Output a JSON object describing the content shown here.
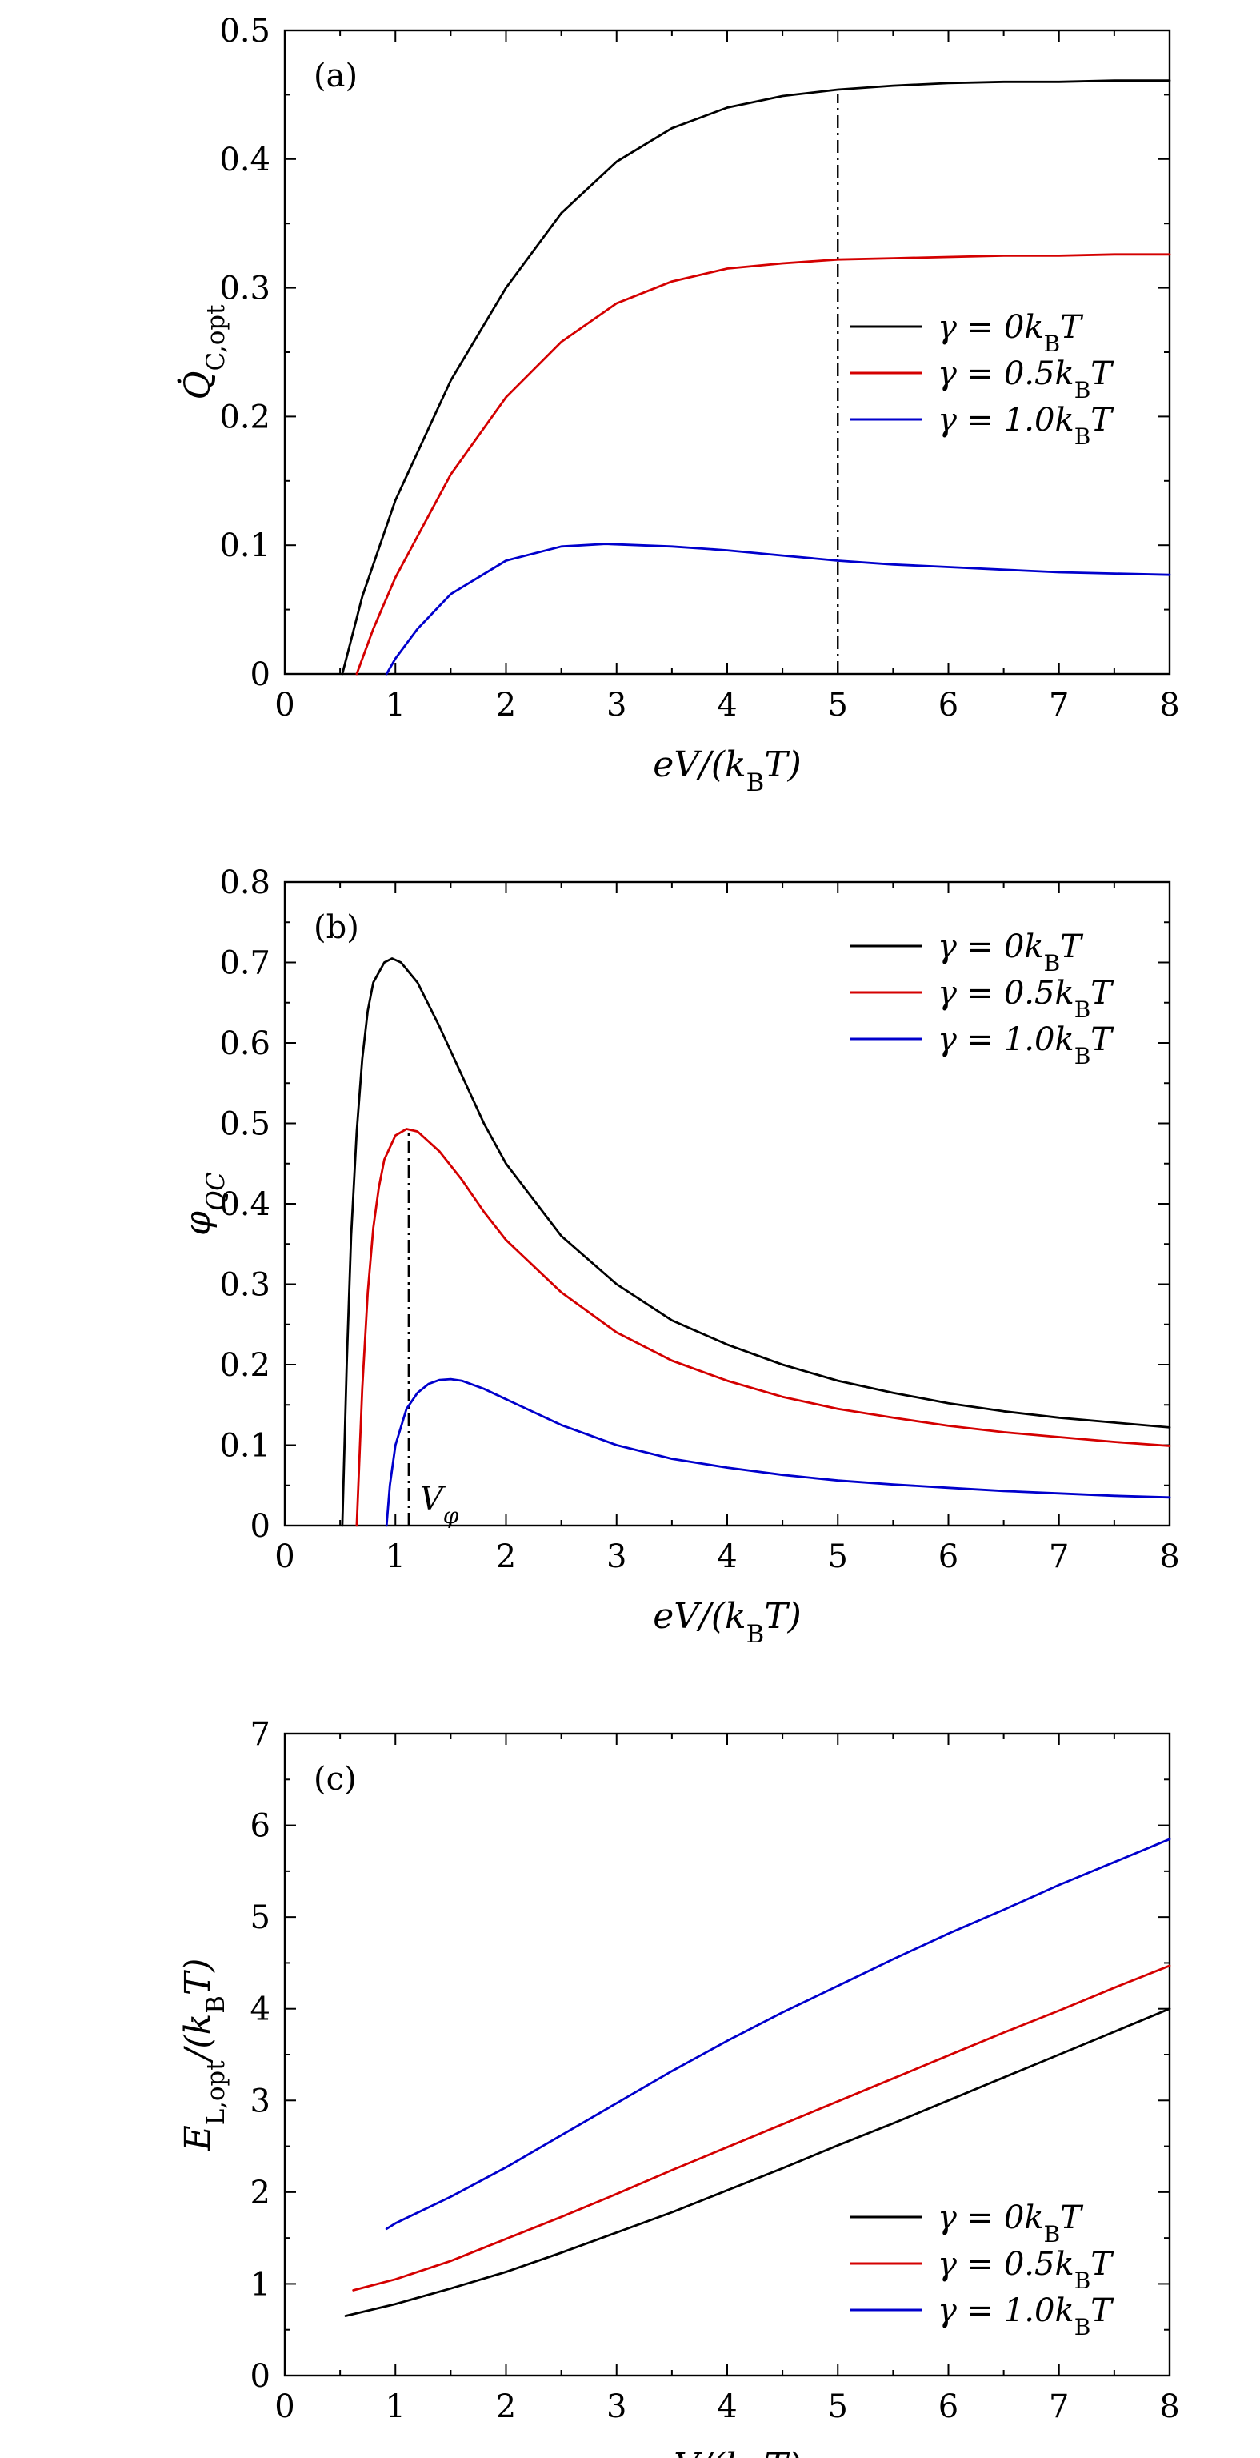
{
  "chart_data": [
    {
      "panel": "(a)",
      "type": "line",
      "xlabel": "eV/(kBT)",
      "ylabel": "Q̇C,opt",
      "xlim": [
        0,
        8
      ],
      "ylim": [
        0,
        0.5
      ],
      "xticks": [
        "0",
        "1",
        "2",
        "3",
        "4",
        "5",
        "6",
        "7",
        "8"
      ],
      "yticks": [
        "0",
        "0.1",
        "0.2",
        "0.3",
        "0.4",
        "0.5"
      ],
      "legend_position": "center-right",
      "series": [
        {
          "name": "γ = 0kBT",
          "color": "#000000",
          "x": [
            0.52,
            0.7,
            1.0,
            1.5,
            2.0,
            2.5,
            3.0,
            3.5,
            4.0,
            4.5,
            5.0,
            5.5,
            6.0,
            6.5,
            7.0,
            7.5,
            8.0
          ],
          "y": [
            0.0,
            0.06,
            0.135,
            0.228,
            0.3,
            0.358,
            0.398,
            0.424,
            0.44,
            0.449,
            0.454,
            0.457,
            0.459,
            0.46,
            0.46,
            0.461,
            0.461
          ]
        },
        {
          "name": "γ = 0.5kBT",
          "color": "#d40000",
          "x": [
            0.65,
            0.8,
            1.0,
            1.5,
            2.0,
            2.5,
            3.0,
            3.5,
            4.0,
            4.5,
            5.0,
            5.5,
            6.0,
            6.5,
            7.0,
            7.5,
            8.0
          ],
          "y": [
            0.0,
            0.035,
            0.075,
            0.155,
            0.215,
            0.258,
            0.288,
            0.305,
            0.315,
            0.319,
            0.322,
            0.323,
            0.324,
            0.325,
            0.325,
            0.326,
            0.326
          ]
        },
        {
          "name": "γ = 1.0kBT",
          "color": "#0000cc",
          "x": [
            0.92,
            1.0,
            1.2,
            1.5,
            2.0,
            2.5,
            2.9,
            3.5,
            4.0,
            4.5,
            5.0,
            5.5,
            6.0,
            6.5,
            7.0,
            7.5,
            8.0
          ],
          "y": [
            0.0,
            0.012,
            0.035,
            0.062,
            0.088,
            0.099,
            0.101,
            0.099,
            0.096,
            0.092,
            0.088,
            0.085,
            0.083,
            0.081,
            0.079,
            0.078,
            0.077
          ]
        }
      ],
      "vlines": [
        {
          "x": 5
        }
      ]
    },
    {
      "panel": "(b)",
      "type": "line",
      "xlabel": "eV/(kBT)",
      "ylabel": "φQC",
      "xlim": [
        0,
        8
      ],
      "ylim": [
        0,
        0.8
      ],
      "xticks": [
        "0",
        "1",
        "2",
        "3",
        "4",
        "5",
        "6",
        "7",
        "8"
      ],
      "yticks": [
        "0",
        "0.1",
        "0.2",
        "0.3",
        "0.4",
        "0.5",
        "0.6",
        "0.7",
        "0.8"
      ],
      "legend_position": "top-right",
      "annotation": "Vφ",
      "series": [
        {
          "name": "γ = 0kBT",
          "color": "#000000",
          "x": [
            0.52,
            0.56,
            0.6,
            0.65,
            0.7,
            0.75,
            0.8,
            0.9,
            0.97,
            1.05,
            1.2,
            1.4,
            1.6,
            1.8,
            2.0,
            2.5,
            3.0,
            3.5,
            4.0,
            4.5,
            5.0,
            5.5,
            6.0,
            6.5,
            7.0,
            7.5,
            8.0
          ],
          "y": [
            0.0,
            0.2,
            0.36,
            0.49,
            0.58,
            0.64,
            0.675,
            0.7,
            0.705,
            0.7,
            0.675,
            0.62,
            0.56,
            0.5,
            0.45,
            0.36,
            0.3,
            0.255,
            0.225,
            0.2,
            0.18,
            0.165,
            0.152,
            0.142,
            0.134,
            0.128,
            0.122
          ]
        },
        {
          "name": "γ = 0.5kBT",
          "color": "#d40000",
          "x": [
            0.65,
            0.7,
            0.75,
            0.8,
            0.85,
            0.9,
            1.0,
            1.1,
            1.2,
            1.4,
            1.6,
            1.8,
            2.0,
            2.5,
            3.0,
            3.5,
            4.0,
            4.5,
            5.0,
            5.5,
            6.0,
            6.5,
            7.0,
            7.5,
            8.0
          ],
          "y": [
            0.0,
            0.17,
            0.29,
            0.37,
            0.42,
            0.455,
            0.485,
            0.493,
            0.49,
            0.465,
            0.43,
            0.39,
            0.355,
            0.29,
            0.24,
            0.205,
            0.18,
            0.16,
            0.145,
            0.134,
            0.124,
            0.116,
            0.11,
            0.104,
            0.099
          ]
        },
        {
          "name": "γ = 1.0kBT",
          "color": "#0000cc",
          "x": [
            0.92,
            0.95,
            1.0,
            1.1,
            1.2,
            1.3,
            1.4,
            1.5,
            1.6,
            1.8,
            2.0,
            2.5,
            3.0,
            3.5,
            4.0,
            4.5,
            5.0,
            5.5,
            6.0,
            6.5,
            7.0,
            7.5,
            8.0
          ],
          "y": [
            0.0,
            0.05,
            0.1,
            0.145,
            0.165,
            0.176,
            0.181,
            0.182,
            0.18,
            0.17,
            0.157,
            0.125,
            0.1,
            0.083,
            0.072,
            0.063,
            0.056,
            0.051,
            0.047,
            0.043,
            0.04,
            0.037,
            0.035
          ]
        }
      ],
      "vlines": [
        {
          "x": 1.12,
          "y_top": 0.493
        }
      ]
    },
    {
      "panel": "(c)",
      "type": "line",
      "xlabel": "eV/(kBT)",
      "ylabel": "EL,opt/(kBT)",
      "xlim": [
        0,
        8
      ],
      "ylim": [
        0,
        7
      ],
      "xticks": [
        "0",
        "1",
        "2",
        "3",
        "4",
        "5",
        "6",
        "7",
        "8"
      ],
      "yticks": [
        "0",
        "1",
        "2",
        "3",
        "4",
        "5",
        "6",
        "7"
      ],
      "legend_position": "bottom-right",
      "series": [
        {
          "name": "γ = 0kBT",
          "color": "#000000",
          "x": [
            0.55,
            1.0,
            1.5,
            2.0,
            2.5,
            3.0,
            3.5,
            4.0,
            4.5,
            5.0,
            5.5,
            6.0,
            6.5,
            7.0,
            7.5,
            8.0
          ],
          "y": [
            0.65,
            0.78,
            0.95,
            1.13,
            1.34,
            1.56,
            1.78,
            2.02,
            2.26,
            2.51,
            2.75,
            3.0,
            3.25,
            3.5,
            3.75,
            4.0
          ]
        },
        {
          "name": "γ = 0.5kBT",
          "color": "#d40000",
          "x": [
            0.62,
            1.0,
            1.5,
            2.0,
            2.5,
            3.0,
            3.5,
            4.0,
            4.5,
            5.0,
            5.5,
            6.0,
            6.5,
            7.0,
            7.5,
            8.0
          ],
          "y": [
            0.93,
            1.05,
            1.25,
            1.49,
            1.73,
            1.98,
            2.24,
            2.49,
            2.74,
            2.99,
            3.24,
            3.49,
            3.74,
            3.98,
            4.23,
            4.47
          ]
        },
        {
          "name": "γ = 1.0kBT",
          "color": "#0000cc",
          "x": [
            0.92,
            1.0,
            1.5,
            2.0,
            2.5,
            3.0,
            3.5,
            4.0,
            4.5,
            5.0,
            5.5,
            6.0,
            6.5,
            7.0,
            7.5,
            8.0
          ],
          "y": [
            1.6,
            1.66,
            1.95,
            2.27,
            2.62,
            2.97,
            3.32,
            3.65,
            3.96,
            4.25,
            4.54,
            4.82,
            5.08,
            5.35,
            5.6,
            5.85
          ]
        }
      ]
    }
  ]
}
